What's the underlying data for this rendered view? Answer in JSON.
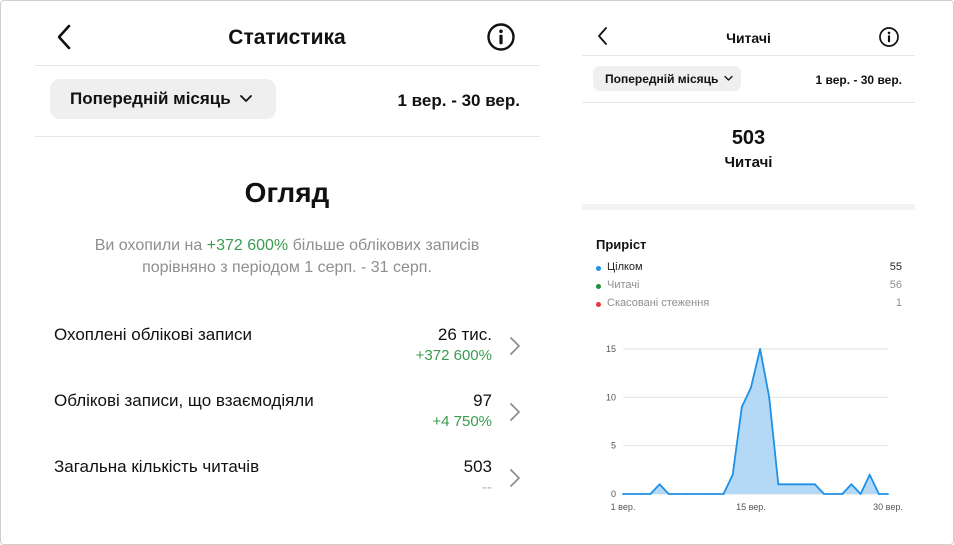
{
  "left": {
    "title": "Статистика",
    "period_button": "Попередній місяць",
    "date_range": "1 вер. - 30 вер.",
    "overview_heading": "Огляд",
    "summary": {
      "before": "Ви охопили на ",
      "highlight": "+372 600%",
      "after": " більше облікових записів порівняно з періодом 1 серп. - 31 серп."
    },
    "metrics": [
      {
        "label": "Охоплені облікові записи",
        "value": "26 тис.",
        "delta": "+372 600%"
      },
      {
        "label": "Облікові записи, що взаємодіяли",
        "value": "97",
        "delta": "+4 750%"
      },
      {
        "label": "Загальна кількість читачів",
        "value": "503",
        "delta": "--"
      }
    ]
  },
  "right": {
    "title": "Читачі",
    "period_button": "Попередній місяць",
    "date_range": "1 вер. - 30 вер.",
    "count": "503",
    "count_label": "Читачі",
    "growth_heading": "Приріст",
    "legend": [
      {
        "label": "Цілком",
        "value": "55",
        "color": "#1e90e6",
        "label_color": "#222222",
        "value_color": "#222222"
      },
      {
        "label": "Читачі",
        "value": "56",
        "color": "#1f8f3a",
        "label_color": "#8e8e8e",
        "value_color": "#8e8e8e"
      },
      {
        "label": "Скасовані стеження",
        "value": "1",
        "color": "#e8343a",
        "label_color": "#8e8e8e",
        "value_color": "#8e8e8e"
      }
    ]
  },
  "colors": {
    "accent_green": "#3a9a50",
    "chart_line": "#1e90e6",
    "chart_fill": "#b3d9f7",
    "muted_text": "#8e8e8e"
  },
  "chart_data": {
    "type": "area",
    "x": [
      1,
      2,
      3,
      4,
      5,
      6,
      7,
      8,
      9,
      10,
      11,
      12,
      13,
      14,
      15,
      16,
      17,
      18,
      19,
      20,
      21,
      22,
      23,
      24,
      25,
      26,
      27,
      28,
      29,
      30
    ],
    "series": [
      {
        "values": [
          0,
          0,
          0,
          0,
          1,
          0,
          0,
          0,
          0,
          0,
          0,
          0,
          2,
          9,
          11,
          15,
          10,
          1,
          1,
          1,
          1,
          1,
          0,
          0,
          0,
          1,
          0,
          2,
          0,
          0
        ]
      }
    ],
    "yticks": [
      "0",
      "5",
      "10",
      "15"
    ],
    "ylim": [
      0,
      15
    ],
    "xtick_labels": [
      "1 вер.",
      "15 вер.",
      "30 вер."
    ],
    "xtick_positions": [
      1,
      15,
      30
    ],
    "grid": true
  }
}
